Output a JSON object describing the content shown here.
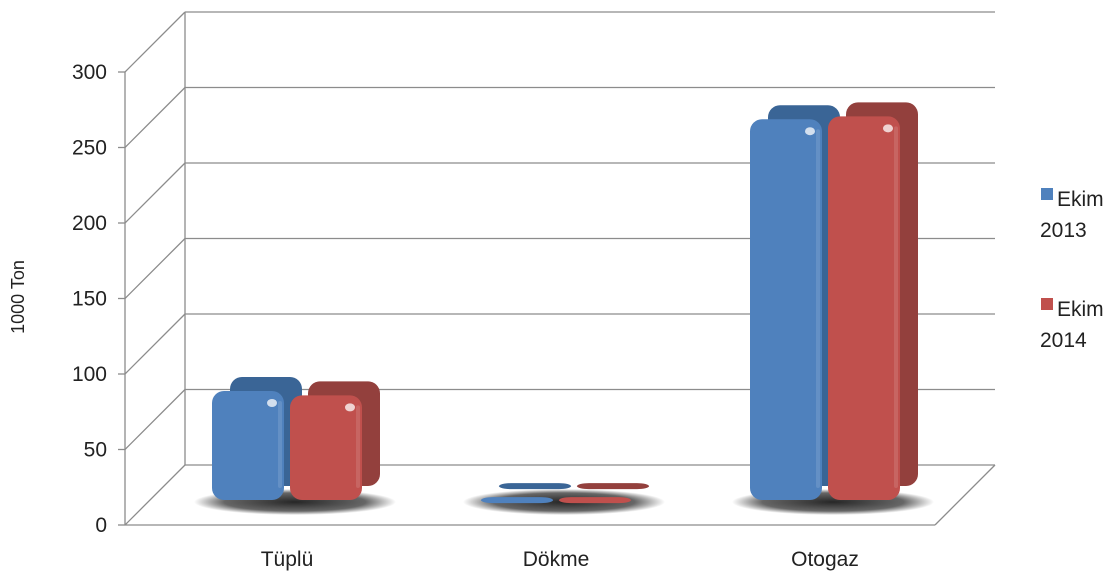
{
  "chart_data": {
    "type": "bar",
    "title": "",
    "xlabel": "",
    "ylabel": "1000 Ton",
    "ylim": [
      0,
      300
    ],
    "yticks": [
      "0",
      "50",
      "100",
      "150",
      "200",
      "250",
      "300"
    ],
    "categories": [
      "Tüplü",
      "Dökme",
      "Otogaz"
    ],
    "series": [
      {
        "name": [
          "Ekim",
          "2013"
        ],
        "values": [
          75,
          2,
          262
        ],
        "color": "#4f81bd",
        "dark": "#3a6596"
      },
      {
        "name": [
          "Ekim",
          "2014"
        ],
        "values": [
          72,
          2,
          264
        ],
        "color": "#c0504d",
        "dark": "#93403d"
      }
    ],
    "grid": true,
    "legend": "right",
    "style": "3d"
  }
}
